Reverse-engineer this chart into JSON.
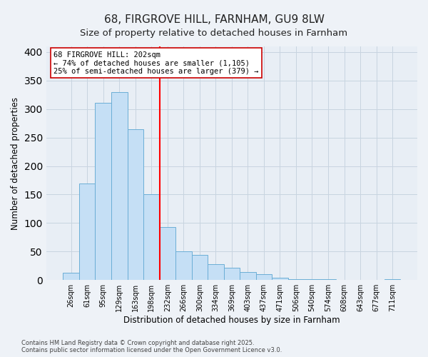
{
  "title": "68, FIRGROVE HILL, FARNHAM, GU9 8LW",
  "subtitle": "Size of property relative to detached houses in Farnham",
  "xlabel": "Distribution of detached houses by size in Farnham",
  "ylabel": "Number of detached properties",
  "bar_labels": [
    "26sqm",
    "61sqm",
    "95sqm",
    "129sqm",
    "163sqm",
    "198sqm",
    "232sqm",
    "266sqm",
    "300sqm",
    "334sqm",
    "369sqm",
    "403sqm",
    "437sqm",
    "471sqm",
    "506sqm",
    "540sqm",
    "574sqm",
    "608sqm",
    "643sqm",
    "677sqm",
    "711sqm"
  ],
  "bar_values": [
    13,
    170,
    311,
    330,
    265,
    150,
    93,
    50,
    44,
    28,
    22,
    14,
    10,
    4,
    2,
    2,
    1,
    0,
    0,
    0,
    1
  ],
  "bar_color": "#c5dff5",
  "bar_edge_color": "#6baed6",
  "ylim": [
    0,
    410
  ],
  "vline_x_index": 5,
  "vline_color": "red",
  "vline_lw": 1.5,
  "annotation_title": "68 FIRGROVE HILL: 202sqm",
  "annotation_line1": "← 74% of detached houses are smaller (1,105)",
  "annotation_line2": "25% of semi-detached houses are larger (379) →",
  "footer_line1": "Contains HM Land Registry data © Crown copyright and database right 2025.",
  "footer_line2": "Contains public sector information licensed under the Open Government Licence v3.0.",
  "background_color": "#eef2f7",
  "plot_bg_color": "#e8eef5",
  "grid_color": "#c8d4e0",
  "title_fontsize": 11,
  "subtitle_fontsize": 9.5,
  "axis_label_fontsize": 8.5,
  "tick_fontsize": 7,
  "footer_fontsize": 6,
  "annotation_fontsize": 7.5
}
